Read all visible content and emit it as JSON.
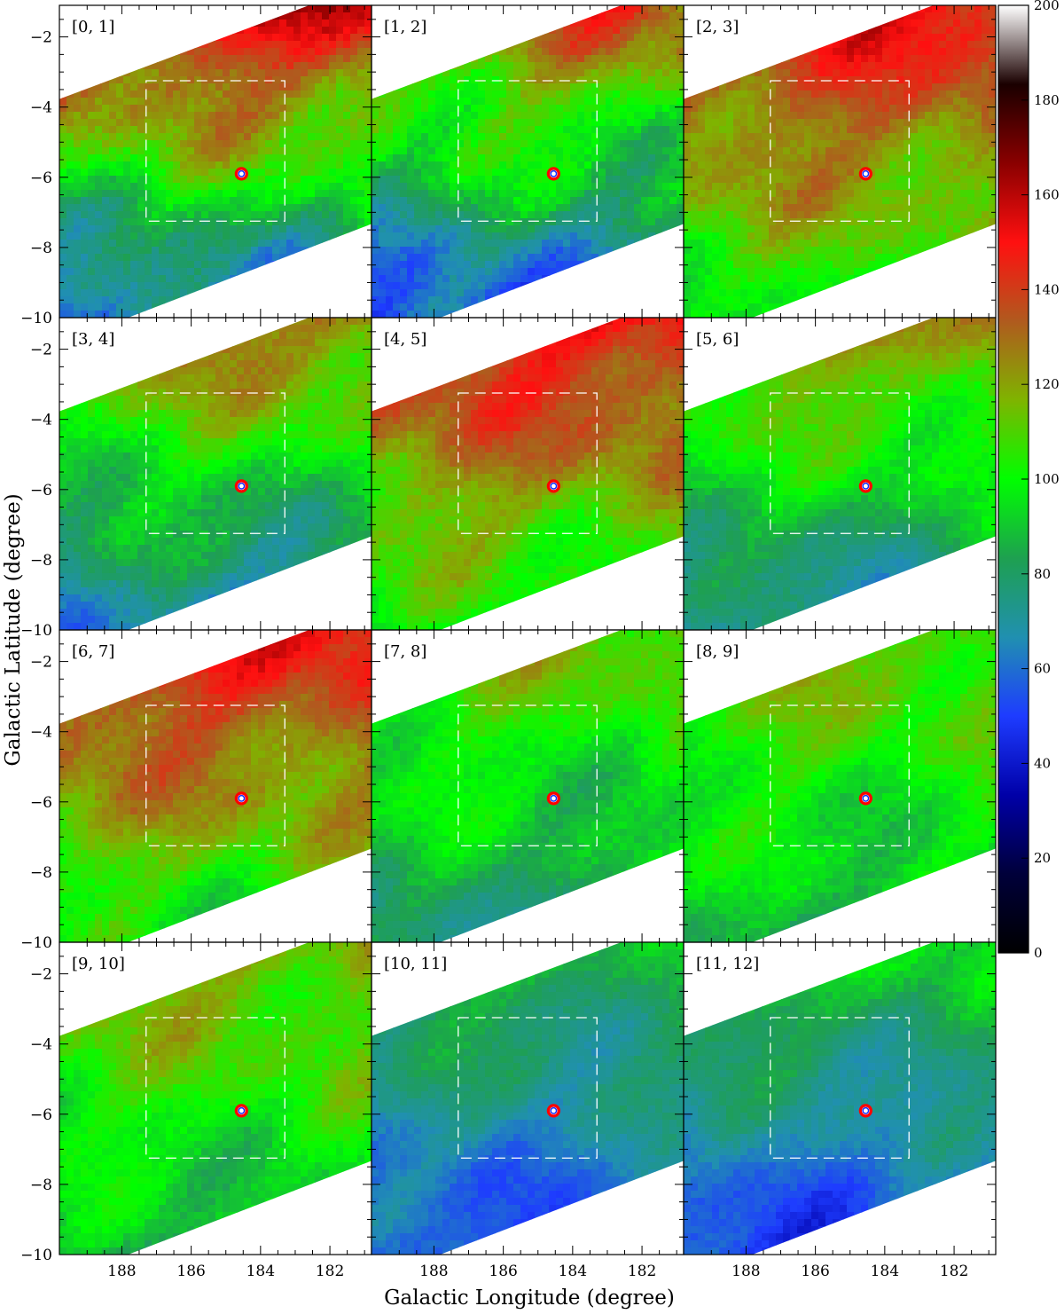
{
  "chart_data": {
    "type": "heatmap",
    "layout": {
      "rows": 4,
      "columns": 3
    },
    "xlabel": "Galactic Longitude (degree)",
    "ylabel": "Galactic Latitude (degree)",
    "x_ticks": [
      188,
      186,
      184,
      182
    ],
    "y_ticks": [
      -2,
      -4,
      -6,
      -8,
      -10
    ],
    "xlim": [
      189.8,
      180.8
    ],
    "ylim": [
      -10,
      -1.1
    ],
    "colorbar": {
      "range": [
        0,
        200
      ],
      "ticks": [
        0,
        20,
        40,
        60,
        80,
        100,
        120,
        140,
        160,
        180,
        200
      ],
      "colors": [
        "#000000",
        "#00003a",
        "#0000a8",
        "#1e3cff",
        "#2090b0",
        "#1ea050",
        "#00ff00",
        "#7fb400",
        "#b05a1e",
        "#ff1010",
        "#8a0000",
        "#1a0000",
        "#ffffff"
      ]
    },
    "box": {
      "l": [
        187.3,
        183.3
      ],
      "b": [
        -7.25,
        -3.25
      ]
    },
    "marker": {
      "l": 184.55,
      "b": -5.9
    },
    "panels": [
      {
        "label": "[0, 1]",
        "level": 120,
        "top": 155,
        "bottom": 55,
        "variation": 12
      },
      {
        "label": "[1, 2]",
        "level": 110,
        "top": 135,
        "bottom": 50,
        "variation": 12
      },
      {
        "label": "[2, 3]",
        "level": 125,
        "top": 150,
        "bottom": 95,
        "variation": 10
      },
      {
        "label": "[3, 4]",
        "level": 105,
        "top": 130,
        "bottom": 60,
        "variation": 10
      },
      {
        "label": "[4, 5]",
        "level": 112,
        "top": 150,
        "bottom": 95,
        "variation": 10
      },
      {
        "label": "[5, 6]",
        "level": 95,
        "top": 125,
        "bottom": 65,
        "variation": 9
      },
      {
        "label": "[6, 7]",
        "level": 100,
        "top": 150,
        "bottom": 95,
        "variation": 10
      },
      {
        "label": "[7, 8]",
        "level": 85,
        "top": 115,
        "bottom": 75,
        "variation": 9
      },
      {
        "label": "[8, 9]",
        "level": 88,
        "top": 115,
        "bottom": 85,
        "variation": 9
      },
      {
        "label": "[9, 10]",
        "level": 90,
        "top": 120,
        "bottom": 85,
        "variation": 9
      },
      {
        "label": "[10, 11]",
        "level": 60,
        "top": 90,
        "bottom": 52,
        "variation": 8
      },
      {
        "label": "[11, 12]",
        "level": 58,
        "top": 95,
        "bottom": 48,
        "variation": 8
      }
    ]
  }
}
